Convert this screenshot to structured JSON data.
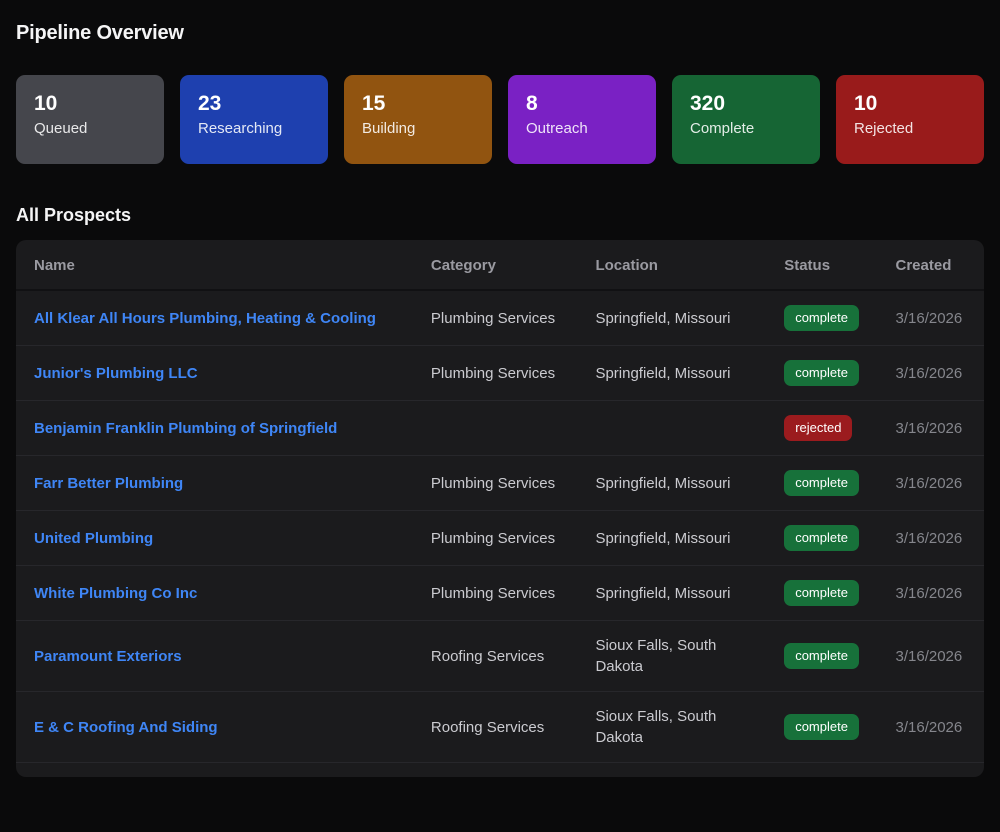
{
  "page": {
    "title": "Pipeline Overview",
    "section_title": "All Prospects"
  },
  "stats": [
    {
      "value": "10",
      "label": "Queued",
      "color": "#45464c"
    },
    {
      "value": "23",
      "label": "Researching",
      "color": "#1e40af"
    },
    {
      "value": "15",
      "label": "Building",
      "color": "#915410"
    },
    {
      "value": "8",
      "label": "Outreach",
      "color": "#7a21c4"
    },
    {
      "value": "320",
      "label": "Complete",
      "color": "#166534"
    },
    {
      "value": "10",
      "label": "Rejected",
      "color": "#991b1b"
    }
  ],
  "table": {
    "columns": [
      "Name",
      "Category",
      "Location",
      "Status",
      "Created"
    ],
    "link_color": "#3f86f6",
    "status_colors": {
      "complete": "#17713a",
      "rejected": "#9b1b1e"
    },
    "rows": [
      {
        "name": "All Klear All Hours Plumbing, Heating & Cooling",
        "category": "Plumbing Services",
        "location": "Springfield, Missouri",
        "status": "complete",
        "created": "3/16/2026"
      },
      {
        "name": "Junior's Plumbing LLC",
        "category": "Plumbing Services",
        "location": "Springfield, Missouri",
        "status": "complete",
        "created": "3/16/2026"
      },
      {
        "name": "Benjamin Franklin Plumbing of Springfield",
        "category": "",
        "location": "",
        "status": "rejected",
        "created": "3/16/2026"
      },
      {
        "name": "Farr Better Plumbing",
        "category": "Plumbing Services",
        "location": "Springfield, Missouri",
        "status": "complete",
        "created": "3/16/2026"
      },
      {
        "name": "United Plumbing",
        "category": "Plumbing Services",
        "location": "Springfield, Missouri",
        "status": "complete",
        "created": "3/16/2026"
      },
      {
        "name": "White Plumbing Co Inc",
        "category": "Plumbing Services",
        "location": "Springfield, Missouri",
        "status": "complete",
        "created": "3/16/2026"
      },
      {
        "name": "Paramount Exteriors",
        "category": "Roofing Services",
        "location": "Sioux Falls, South Dakota",
        "status": "complete",
        "created": "3/16/2026"
      },
      {
        "name": "E & C Roofing And Siding",
        "category": "Roofing Services",
        "location": "Sioux Falls, South Dakota",
        "status": "complete",
        "created": "3/16/2026"
      }
    ]
  }
}
